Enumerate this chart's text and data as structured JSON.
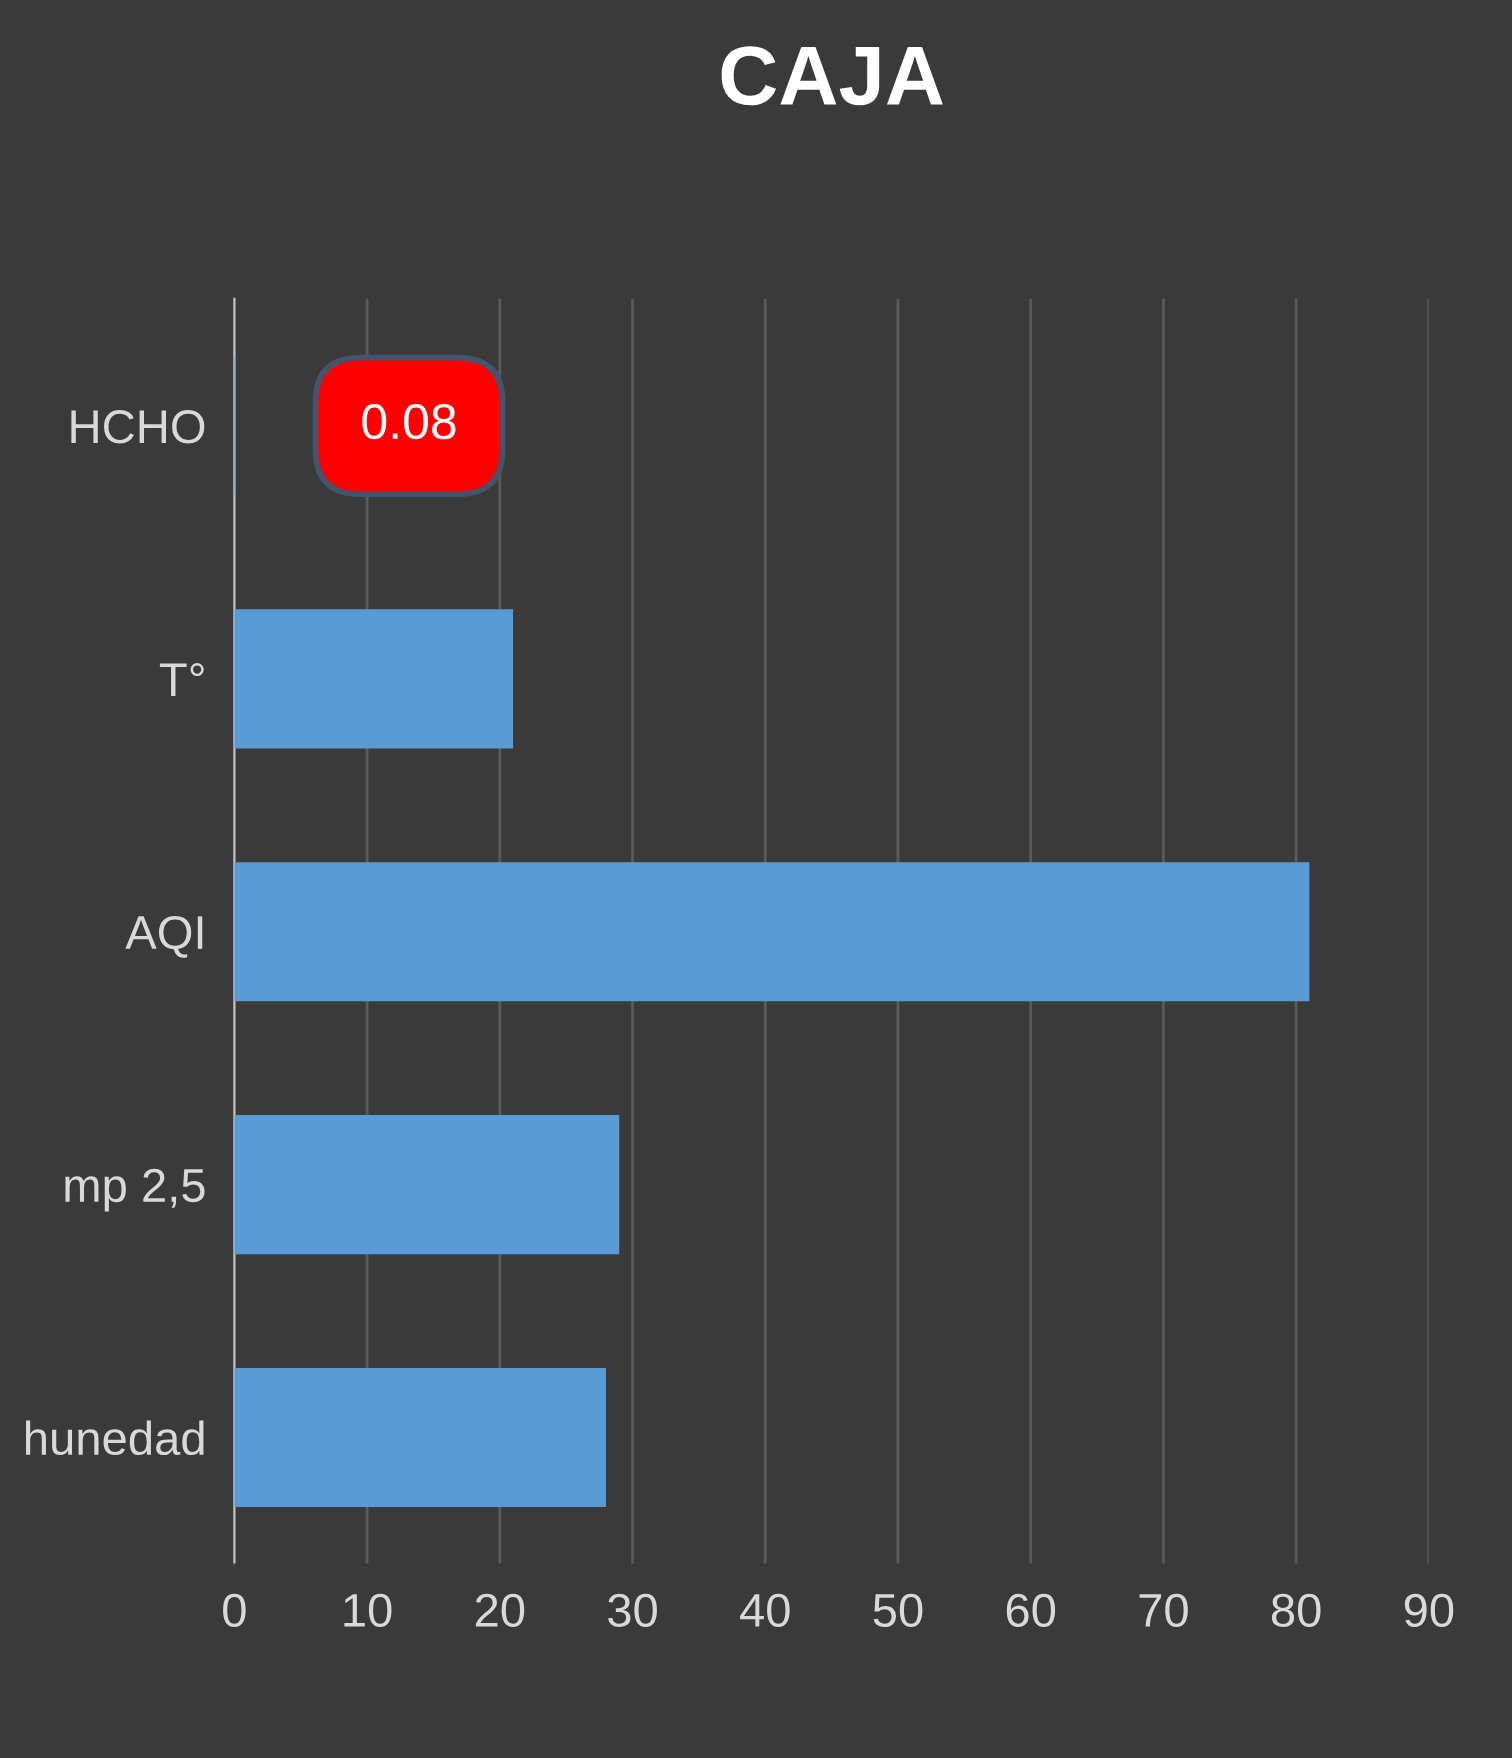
{
  "chart_data": {
    "type": "bar",
    "orientation": "horizontal",
    "title": "CAJA",
    "categories": [
      "HCHO",
      "T°",
      "AQI",
      "mp 2,5",
      "hunedad"
    ],
    "values": [
      0.08,
      21,
      81,
      29,
      28
    ],
    "value_labels": [
      "0.08",
      null,
      null,
      null,
      null
    ],
    "color": "#5b9bd5",
    "xlim": [
      0,
      90
    ],
    "xticks": [
      0,
      10,
      20,
      30,
      40,
      50,
      60,
      70,
      80,
      90
    ],
    "grid": "x"
  }
}
